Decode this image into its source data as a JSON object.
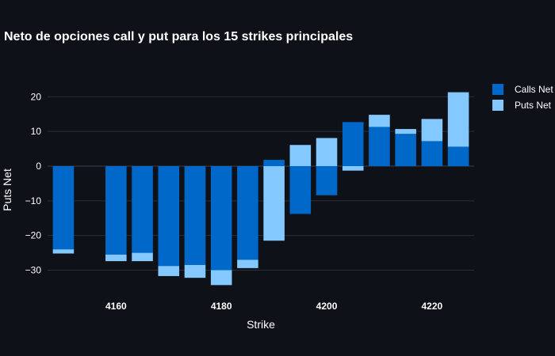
{
  "chart_data": {
    "type": "bar",
    "barmode": "relative",
    "title": "Neto de opciones call y put para los 15 strikes principales",
    "xlabel": "Strike",
    "ylabel": "Puts Net",
    "x": [
      4150,
      4160,
      4165,
      4170,
      4175,
      4180,
      4185,
      4190,
      4195,
      4200,
      4205,
      4210,
      4215,
      4220,
      4225
    ],
    "xlim": [
      4147,
      4228
    ],
    "ylim": [
      -36.5,
      26
    ],
    "xticks": [
      4160,
      4180,
      4200,
      4220
    ],
    "yticks": [
      20,
      10,
      0,
      -10,
      -20,
      -30
    ],
    "xtick_labels": [
      "4160",
      "4180",
      "4200",
      "4220"
    ],
    "ytick_labels": [
      "20",
      "10",
      "0",
      "−10",
      "−20",
      "−30"
    ],
    "grid": true,
    "legend_position": "top-right",
    "series": [
      {
        "name": "Calls Net",
        "color": "#0068c9",
        "values": [
          -24,
          -25.5,
          -25,
          -28.8,
          -28.5,
          -30,
          -27,
          1.8,
          -13.8,
          -8.4,
          12.7,
          11.3,
          9.3,
          7.2,
          5.6
        ]
      },
      {
        "name": "Puts Net",
        "color": "#83c9ff",
        "values": [
          -1.2,
          -1.9,
          -2.4,
          -2.9,
          -3.7,
          -4.3,
          -2.4,
          -21.5,
          6.1,
          8.1,
          -1.3,
          3.5,
          1.4,
          6.4,
          15.7
        ]
      }
    ]
  }
}
